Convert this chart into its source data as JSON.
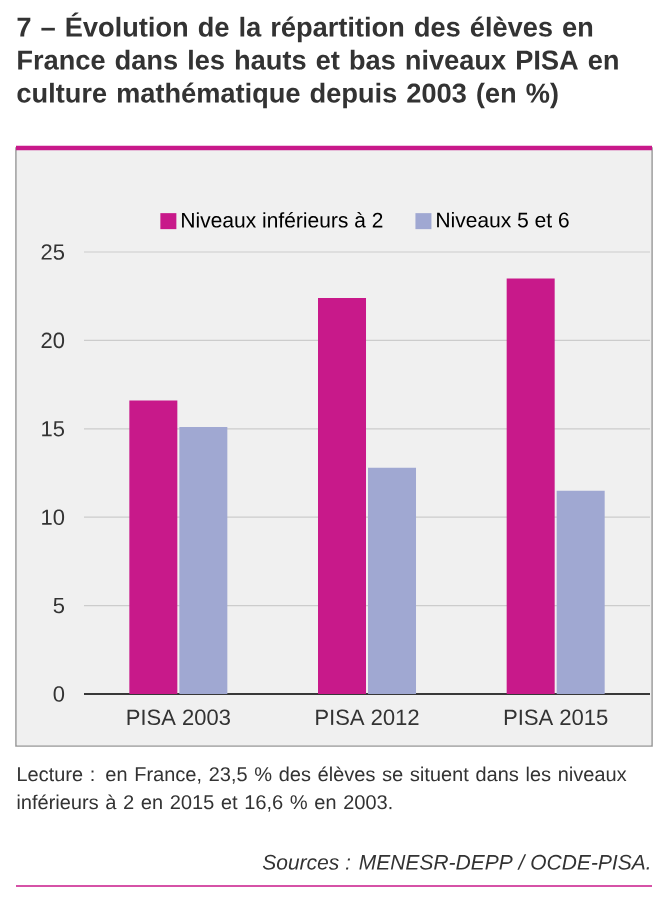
{
  "chart_data": {
    "type": "bar",
    "title": "7 – Évolution de la répartition des élèves en France dans les hauts et bas niveaux PISA en culture mathématique depuis 2003 (en %)",
    "categories": [
      "PISA 2003",
      "PISA 2012",
      "PISA 2015"
    ],
    "series": [
      {
        "name": "Niveaux inférieurs à 2",
        "color": "#c8198a",
        "values": [
          16.6,
          22.4,
          23.5
        ]
      },
      {
        "name": "Niveaux 5 et 6",
        "color": "#a0a8d2",
        "values": [
          15.1,
          12.8,
          11.5
        ]
      }
    ],
    "ylim": [
      0,
      25
    ],
    "yticks": [
      0,
      5,
      10,
      15,
      20,
      25
    ],
    "grid": "y",
    "legend": "top",
    "annotations": [
      "Lecture : en France, 23,5 % des élèves se situent dans les niveaux inférieurs à 2 en 2015 et 16,6 % en 2003.",
      "Sources : MENESR-DEPP / OCDE-PISA."
    ]
  }
}
